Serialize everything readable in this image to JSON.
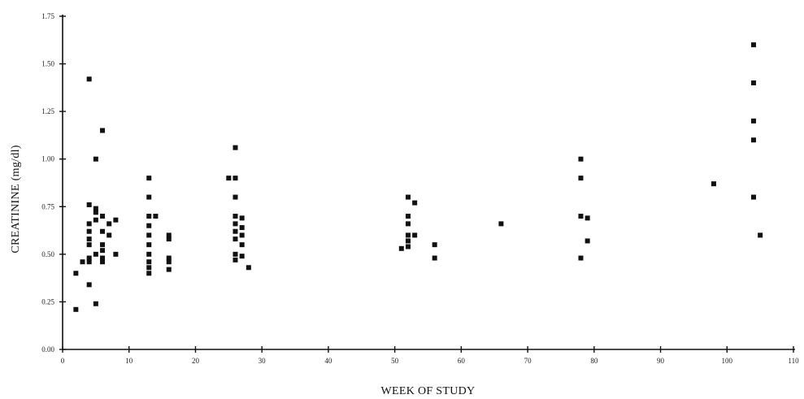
{
  "chart_data": {
    "type": "scatter",
    "xlabel": "WEEK OF STUDY",
    "ylabel": "CREATININE (mg/dl)",
    "xlim": [
      0,
      110
    ],
    "ylim": [
      0,
      1.75
    ],
    "x_ticks": [
      0,
      10,
      20,
      30,
      40,
      50,
      60,
      70,
      80,
      90,
      100,
      110
    ],
    "x_tick_labels": [
      "0",
      "10",
      "20",
      "30",
      "40",
      "50",
      "60",
      "70",
      "80",
      "90",
      "100",
      "110"
    ],
    "y_ticks": [
      0,
      0.25,
      0.5,
      0.75,
      1.0,
      1.25,
      1.5,
      1.75
    ],
    "y_tick_labels": [
      "0.00",
      "0.25",
      "0.50",
      "0.75",
      "1.00",
      "1.25",
      "1.50",
      "1.75"
    ],
    "grid": false,
    "marker": "square",
    "marker_color": "#111111",
    "series": [
      {
        "points": [
          [
            2,
            0.4
          ],
          [
            2,
            0.21
          ],
          [
            3,
            0.46
          ],
          [
            4,
            1.42
          ],
          [
            4,
            0.76
          ],
          [
            4,
            0.66
          ],
          [
            4,
            0.62
          ],
          [
            4,
            0.58
          ],
          [
            4,
            0.55
          ],
          [
            4,
            0.48
          ],
          [
            4,
            0.46
          ],
          [
            4,
            0.34
          ],
          [
            5,
            1.0
          ],
          [
            5,
            0.74
          ],
          [
            5,
            0.72
          ],
          [
            5,
            0.68
          ],
          [
            5,
            0.5
          ],
          [
            5,
            0.24
          ],
          [
            6,
            1.15
          ],
          [
            6,
            0.7
          ],
          [
            6,
            0.62
          ],
          [
            6,
            0.55
          ],
          [
            6,
            0.52
          ],
          [
            6,
            0.48
          ],
          [
            6,
            0.46
          ],
          [
            7,
            0.66
          ],
          [
            7,
            0.6
          ],
          [
            8,
            0.68
          ],
          [
            8,
            0.5
          ],
          [
            13,
            0.9
          ],
          [
            13,
            0.8
          ],
          [
            13,
            0.7
          ],
          [
            13,
            0.65
          ],
          [
            13,
            0.6
          ],
          [
            13,
            0.55
          ],
          [
            13,
            0.5
          ],
          [
            13,
            0.46
          ],
          [
            13,
            0.43
          ],
          [
            13,
            0.4
          ],
          [
            14,
            0.7
          ],
          [
            16,
            0.6
          ],
          [
            16,
            0.58
          ],
          [
            16,
            0.48
          ],
          [
            16,
            0.46
          ],
          [
            16,
            0.42
          ],
          [
            25,
            0.9
          ],
          [
            26,
            1.06
          ],
          [
            26,
            0.9
          ],
          [
            26,
            0.8
          ],
          [
            26,
            0.7
          ],
          [
            26,
            0.66
          ],
          [
            26,
            0.62
          ],
          [
            26,
            0.58
          ],
          [
            26,
            0.5
          ],
          [
            26,
            0.47
          ],
          [
            27,
            0.69
          ],
          [
            27,
            0.64
          ],
          [
            27,
            0.6
          ],
          [
            27,
            0.55
          ],
          [
            27,
            0.49
          ],
          [
            28,
            0.43
          ],
          [
            51,
            0.53
          ],
          [
            52,
            0.8
          ],
          [
            52,
            0.7
          ],
          [
            52,
            0.66
          ],
          [
            52,
            0.6
          ],
          [
            52,
            0.57
          ],
          [
            52,
            0.54
          ],
          [
            53,
            0.77
          ],
          [
            53,
            0.6
          ],
          [
            56,
            0.55
          ],
          [
            56,
            0.48
          ],
          [
            66,
            0.66
          ],
          [
            78,
            1.0
          ],
          [
            78,
            0.9
          ],
          [
            78,
            0.7
          ],
          [
            78,
            0.48
          ],
          [
            79,
            0.69
          ],
          [
            79,
            0.57
          ],
          [
            98,
            0.87
          ],
          [
            104,
            1.6
          ],
          [
            104,
            1.4
          ],
          [
            104,
            1.2
          ],
          [
            104,
            1.1
          ],
          [
            104,
            0.8
          ],
          [
            105,
            0.6
          ]
        ]
      }
    ]
  }
}
